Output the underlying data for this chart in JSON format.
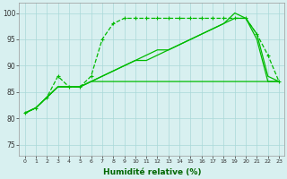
{
  "xlabel": "Humidité relative (%)",
  "bg_color": "#d8f0f0",
  "grid_color": "#aad8d8",
  "line_color": "#00bb00",
  "xlim": [
    -0.5,
    23.5
  ],
  "ylim": [
    73,
    102
  ],
  "yticks": [
    75,
    80,
    85,
    90,
    95,
    100
  ],
  "xticks": [
    0,
    1,
    2,
    3,
    4,
    5,
    6,
    7,
    8,
    9,
    10,
    11,
    12,
    13,
    14,
    15,
    16,
    17,
    18,
    19,
    20,
    21,
    22,
    23
  ],
  "line1_x": [
    0,
    1,
    2,
    3,
    4,
    5,
    6,
    7,
    8,
    9,
    10,
    11,
    12,
    13,
    14,
    15,
    16,
    17,
    18,
    19,
    20,
    21,
    22,
    23
  ],
  "line1_y": [
    81,
    82,
    84,
    88,
    86,
    86,
    88,
    95,
    98,
    99,
    99,
    99,
    99,
    99,
    99,
    99,
    99,
    99,
    99,
    99,
    99,
    96,
    92,
    87
  ],
  "line2_x": [
    0,
    1,
    2,
    3,
    4,
    5,
    6,
    7,
    8,
    9,
    10,
    11,
    12,
    13,
    14,
    15,
    16,
    17,
    18,
    19,
    20,
    21,
    22,
    23
  ],
  "line2_y": [
    81,
    82,
    84,
    86,
    86,
    86,
    87,
    88,
    89,
    90,
    91,
    92,
    93,
    93,
    94,
    95,
    96,
    97,
    98,
    100,
    99,
    96,
    88,
    87
  ],
  "line3_x": [
    0,
    1,
    2,
    3,
    4,
    5,
    6,
    7,
    8,
    9,
    10,
    11,
    12,
    13,
    14,
    15,
    16,
    17,
    18,
    19,
    20,
    21,
    22,
    23
  ],
  "line3_y": [
    81,
    82,
    84,
    86,
    86,
    86,
    87,
    88,
    89,
    90,
    91,
    91,
    92,
    93,
    94,
    95,
    96,
    97,
    98,
    99,
    99,
    95,
    87,
    87
  ],
  "line4_x": [
    0,
    1,
    2,
    3,
    4,
    5,
    6,
    7,
    8,
    9,
    10,
    11,
    12,
    13,
    14,
    15,
    16,
    17,
    18,
    19,
    20,
    21,
    22,
    23
  ],
  "line4_y": [
    81,
    82,
    84,
    86,
    86,
    86,
    87,
    87,
    87,
    87,
    87,
    87,
    87,
    87,
    87,
    87,
    87,
    87,
    87,
    87,
    87,
    87,
    87,
    87
  ]
}
